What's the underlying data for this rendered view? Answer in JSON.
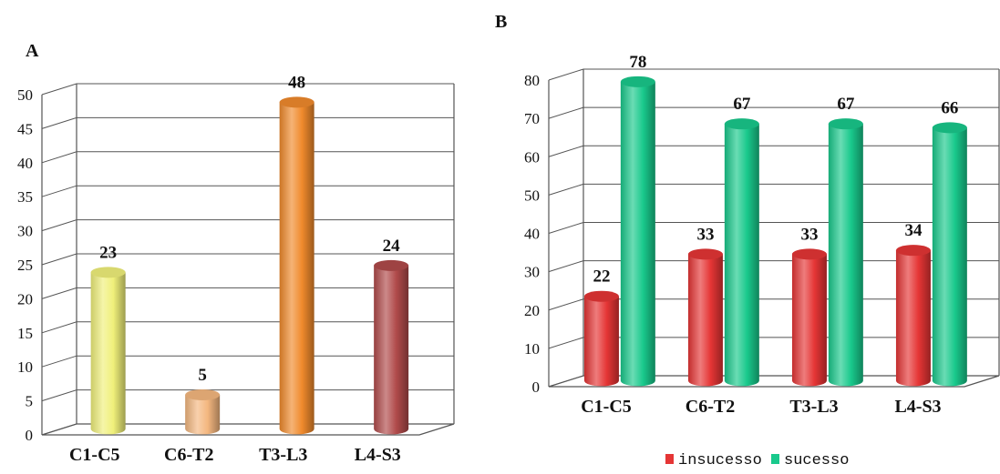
{
  "chart_data": [
    {
      "panel": "A",
      "type": "bar",
      "categories": [
        "C1-C5",
        "C6-T2",
        "T3-L3",
        "L4-S3"
      ],
      "values": [
        23,
        5,
        48,
        24
      ],
      "ylim": [
        0,
        50
      ],
      "yticks": [
        0,
        5,
        10,
        15,
        20,
        25,
        30,
        35,
        40,
        45,
        50
      ],
      "grid": true,
      "colors": [
        "#f0f07a",
        "#f4b77f",
        "#f08a2c",
        "#b04a4a"
      ],
      "xlabel": "",
      "ylabel": ""
    },
    {
      "panel": "B",
      "type": "bar",
      "categories": [
        "C1-C5",
        "C6-T2",
        "T3-L3",
        "L4-S3"
      ],
      "series": [
        {
          "name": "insucesso",
          "values": [
            22,
            33,
            33,
            34
          ],
          "color": "#e53535"
        },
        {
          "name": "sucesso",
          "values": [
            78,
            67,
            67,
            66
          ],
          "color": "#19c98c"
        }
      ],
      "ylim": [
        0,
        80
      ],
      "yticks": [
        0,
        10,
        20,
        30,
        40,
        50,
        60,
        70,
        80
      ],
      "grid": true,
      "legend_position": "bottom",
      "xlabel": "",
      "ylabel": ""
    }
  ]
}
